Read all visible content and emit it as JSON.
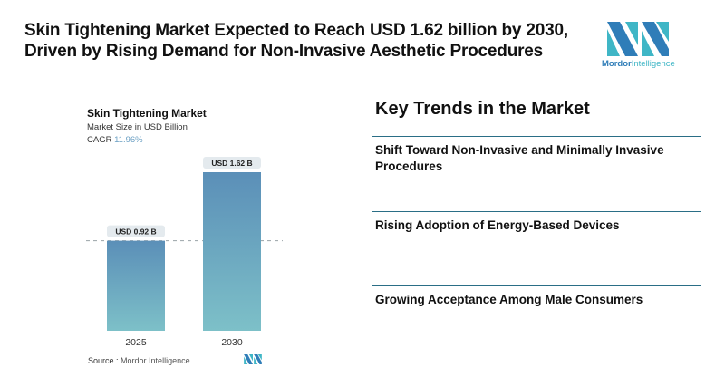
{
  "headline": {
    "line1": "Skin Tightening Market Expected to Reach USD 1.62 billion by 2030,",
    "line2": "Driven by Rising Demand for Non-Invasive Aesthetic Procedures"
  },
  "brand": {
    "name_part1": "Mordor",
    "name_part2": "Intelligence",
    "colors": {
      "dark": "#2f7db8",
      "light": "#3fb6c6"
    }
  },
  "chart_data": {
    "type": "bar",
    "title": "Skin Tightening Market",
    "subtitle": "Market Size in USD Billion",
    "cagr_label": "CAGR",
    "cagr_value": "11.96%",
    "categories": [
      "2025",
      "2030"
    ],
    "values": [
      0.92,
      1.62
    ],
    "data_labels": [
      "USD 0.92 B",
      "USD 1.62 B"
    ],
    "xlabel": "",
    "ylabel": "",
    "ylim": [
      0,
      1.62
    ],
    "grid": false,
    "reference_line": {
      "value": 0.92,
      "style": "dashed"
    },
    "bar_gradient": {
      "top": "#5b8fb8",
      "bottom": "#7dc0c8"
    },
    "source_label": "Source :",
    "source_value": "Mordor Intelligence"
  },
  "trends": {
    "title": "Key Trends in the Market",
    "items": [
      "Shift Toward Non-Invasive and Minimally Invasive Procedures",
      "Rising Adoption of Energy-Based Devices",
      "Growing Acceptance Among Male Consumers"
    ],
    "rule_color": "#2a6e86"
  }
}
